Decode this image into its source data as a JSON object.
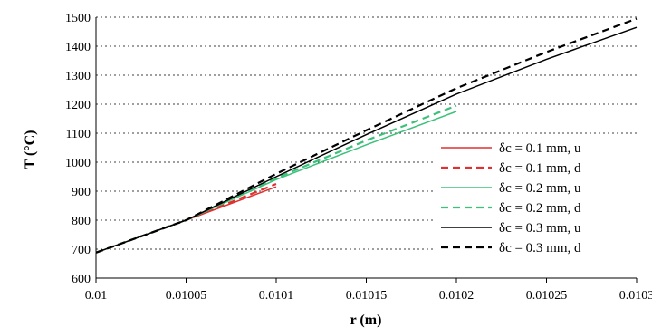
{
  "chart_data": {
    "type": "line",
    "title": "",
    "xlabel": "r (m)",
    "ylabel": "T (°C)",
    "xlim": [
      0.01,
      0.0103
    ],
    "ylim": [
      600,
      1500
    ],
    "x_ticks": [
      "0.01",
      "0.01005",
      "0.0101",
      "0.01015",
      "0.0102",
      "0.01025",
      "0.0103"
    ],
    "y_ticks": [
      "600",
      "700",
      "800",
      "900",
      "1000",
      "1100",
      "1200",
      "1300",
      "1400",
      "1500"
    ],
    "grid": "horizontal dotted",
    "legend_position": "right-inside",
    "series": [
      {
        "name": "δc = 0.1 mm, u",
        "color": "#e03030",
        "dash": "solid",
        "x": [
          0.01,
          0.01005,
          0.0101
        ],
        "y": [
          688,
          800,
          915
        ]
      },
      {
        "name": "δc = 0.1 mm, d",
        "color": "#e03030",
        "dash": "dashed",
        "x": [
          0.01,
          0.01005,
          0.0101
        ],
        "y": [
          688,
          800,
          925
        ]
      },
      {
        "name": "δc = 0.2 mm, u",
        "color": "#3cc07a",
        "dash": "solid",
        "x": [
          0.01,
          0.01005,
          0.0101,
          0.01015,
          0.0102
        ],
        "y": [
          688,
          800,
          940,
          1060,
          1175
        ]
      },
      {
        "name": "δc = 0.2 mm, d",
        "color": "#3cc07a",
        "dash": "dashed",
        "x": [
          0.01,
          0.01005,
          0.0101,
          0.01015,
          0.0102
        ],
        "y": [
          688,
          800,
          945,
          1075,
          1195
        ]
      },
      {
        "name": "δc = 0.3 mm, u",
        "color": "#000000",
        "dash": "solid",
        "x": [
          0.01,
          0.01005,
          0.0101,
          0.01015,
          0.0102,
          0.01025,
          0.0103
        ],
        "y": [
          688,
          800,
          950,
          1095,
          1235,
          1355,
          1465
        ]
      },
      {
        "name": "δc = 0.3 mm, d",
        "color": "#000000",
        "dash": "dashed",
        "x": [
          0.01,
          0.01005,
          0.0101,
          0.01015,
          0.0102,
          0.01025,
          0.0103
        ],
        "y": [
          688,
          800,
          960,
          1110,
          1255,
          1380,
          1495
        ]
      }
    ]
  }
}
